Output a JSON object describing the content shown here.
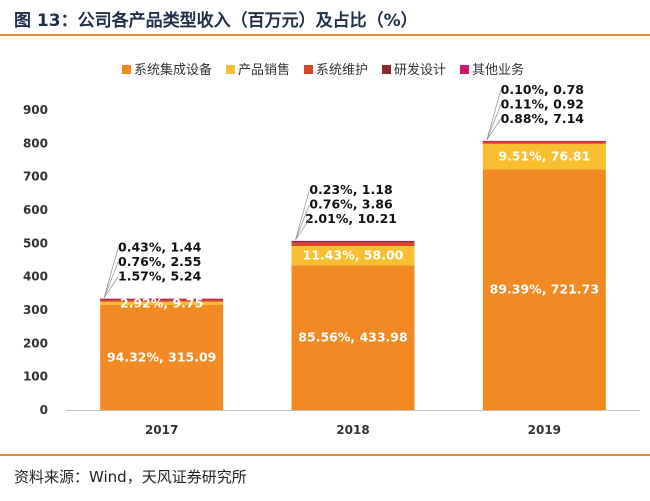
{
  "title": "图 13：公司各产品类型收入（百万元）及占比（%）",
  "source": "资料来源：Wind，天风证券研究所",
  "colors": {
    "accent": "#e58a2a",
    "系统集成设备": "#f28a24",
    "产品销售": "#f9bf30",
    "系统维护": "#d9472b",
    "研发设计": "#8c2a2a",
    "其他业务": "#d4146a"
  },
  "chart_data": {
    "type": "bar",
    "stacked": true,
    "categories": [
      "2017",
      "2018",
      "2019"
    ],
    "ylim": [
      0,
      900
    ],
    "yticks": [
      0,
      100,
      200,
      300,
      400,
      500,
      600,
      700,
      800,
      900
    ],
    "legend_position": "top",
    "grid": false,
    "series": [
      {
        "name": "系统集成设备",
        "values": [
          315.09,
          433.98,
          721.73
        ],
        "labels": [
          "94.32%, 315.09",
          "85.56%, 433.98",
          "89.39%, 721.73"
        ]
      },
      {
        "name": "产品销售",
        "values": [
          9.75,
          58.0,
          76.81
        ],
        "labels": [
          "2.92%, 9.75",
          "11.43%, 58.00",
          "9.51%, 76.81"
        ]
      },
      {
        "name": "系统维护",
        "values": [
          5.24,
          10.21,
          7.14
        ],
        "labels": [
          "1.57%, 5.24",
          "2.01%, 10.21",
          "0.88%, 7.14"
        ]
      },
      {
        "name": "研发设计",
        "values": [
          2.55,
          3.86,
          0.92
        ],
        "labels": [
          "0.76%, 2.55",
          "0.76%, 3.86",
          "0.11%, 0.92"
        ]
      },
      {
        "name": "其他业务",
        "values": [
          1.44,
          1.18,
          0.78
        ],
        "labels": [
          "0.43%, 1.44",
          "0.23%, 1.18",
          "0.10%, 0.78"
        ]
      }
    ]
  }
}
